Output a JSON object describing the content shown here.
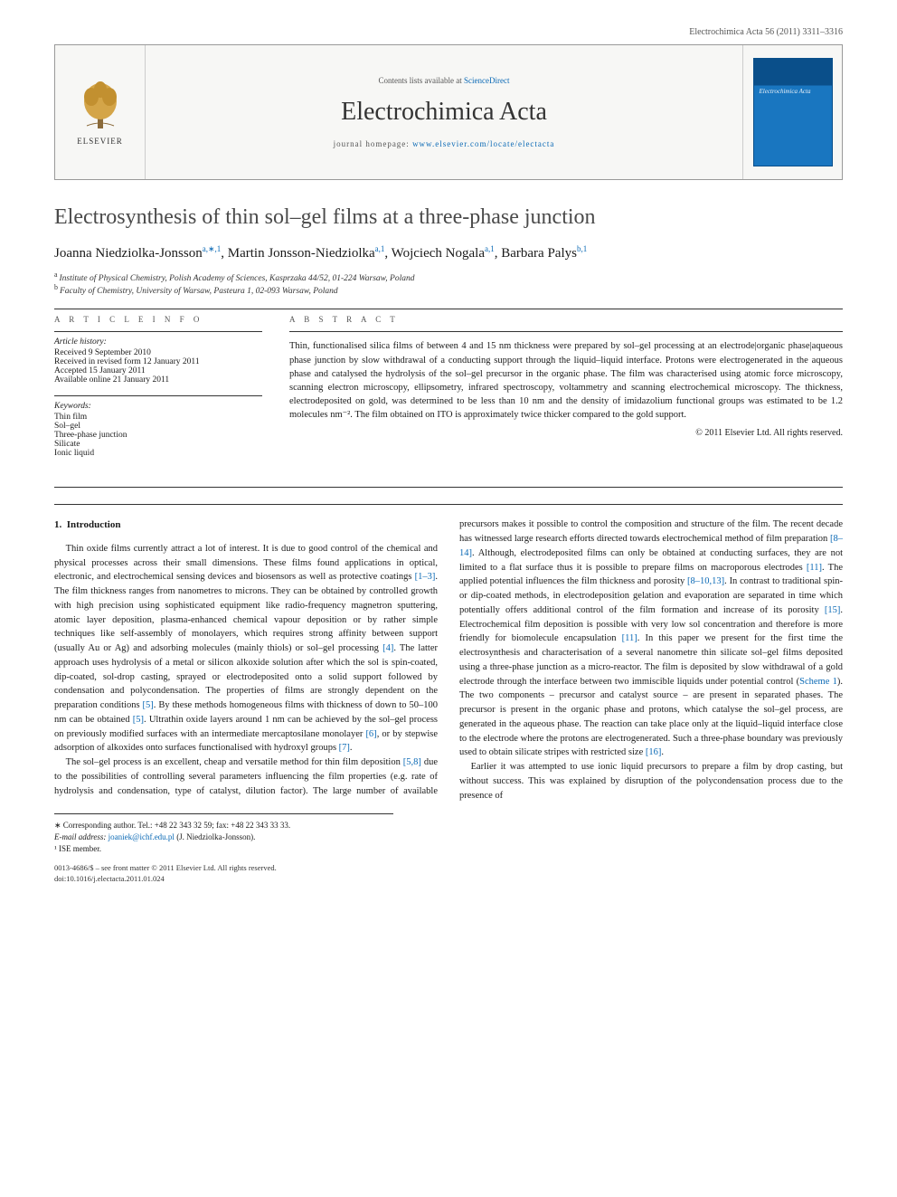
{
  "header": {
    "citation": "Electrochimica Acta 56 (2011) 3311–3316"
  },
  "masthead": {
    "publisher": "ELSEVIER",
    "contents_prefix": "Contents lists available at ",
    "contents_link": "ScienceDirect",
    "journal": "Electrochimica Acta",
    "homepage_prefix": "journal homepage: ",
    "homepage_url": "www.elsevier.com/locate/electacta",
    "cover_title": "Electrochimica Acta"
  },
  "article": {
    "title": "Electrosynthesis of thin sol–gel films at a three-phase junction",
    "authors_html": [
      {
        "name": "Joanna Niedziolka-Jonsson",
        "sup": "a,∗,1"
      },
      {
        "name": "Martin Jonsson-Niedziolka",
        "sup": "a,1"
      },
      {
        "name": "Wojciech Nogala",
        "sup": "a,1"
      },
      {
        "name": "Barbara Palys",
        "sup": "b,1"
      }
    ],
    "affiliations": [
      {
        "marker": "a",
        "text": "Institute of Physical Chemistry, Polish Academy of Sciences, Kasprzaka 44/52, 01-224 Warsaw, Poland"
      },
      {
        "marker": "b",
        "text": "Faculty of Chemistry, University of Warsaw, Pasteura 1, 02-093 Warsaw, Poland"
      }
    ]
  },
  "info": {
    "heading": "A R T I C L E   I N F O",
    "history_label": "Article history:",
    "history": [
      "Received 9 September 2010",
      "Received in revised form 12 January 2011",
      "Accepted 15 January 2011",
      "Available online 21 January 2011"
    ],
    "keywords_label": "Keywords:",
    "keywords": [
      "Thin film",
      "Sol–gel",
      "Three-phase junction",
      "Silicate",
      "Ionic liquid"
    ]
  },
  "abstract": {
    "heading": "A B S T R A C T",
    "text": "Thin, functionalised silica films of between 4 and 15 nm thickness were prepared by sol–gel processing at an electrode|organic phase|aqueous phase junction by slow withdrawal of a conducting support through the liquid–liquid interface. Protons were electrogenerated in the aqueous phase and catalysed the hydrolysis of the sol–gel precursor in the organic phase. The film was characterised using atomic force microscopy, scanning electron microscopy, ellipsometry, infrared spectroscopy, voltammetry and scanning electrochemical microscopy. The thickness, electrodeposited on gold, was determined to be less than 10 nm and the density of imidazolium functional groups was estimated to be 1.2 molecules nm⁻². The film obtained on ITO is approximately twice thicker compared to the gold support.",
    "copyright": "© 2011 Elsevier Ltd. All rights reserved."
  },
  "body": {
    "section_number": "1.",
    "section_title": "Introduction",
    "p1": "Thin oxide films currently attract a lot of interest. It is due to good control of the chemical and physical processes across their small dimensions. These films found applications in optical, electronic, and electrochemical sensing devices and biosensors as well as protective coatings [1–3]. The film thickness ranges from nanometres to microns. They can be obtained by controlled growth with high precision using sophisticated equipment like radio-frequency magnetron sputtering, atomic layer deposition, plasma-enhanced chemical vapour deposition or by rather simple techniques like self-assembly of monolayers, which requires strong affinity between support (usually Au or Ag) and adsorbing molecules (mainly thiols) or sol–gel processing [4]. The latter approach uses hydrolysis of a metal or silicon alkoxide solution after which the sol is spin-coated, dip-coated, sol-drop casting, sprayed or electrodeposited onto a solid support followed by condensation and polycondensation. The properties of films are strongly dependent on the preparation conditions [5]. By these methods homogeneous films with thickness of down to 50–100 nm can be obtained [5]. Ultrathin oxide layers around 1 nm can be achieved by the sol–gel process on previously modified surfaces with an intermediate mercaptosilane monolayer [6], or by stepwise adsorption of alkoxides onto surfaces functionalised with hydroxyl groups [7].",
    "p2": "The sol–gel process is an excellent, cheap and versatile method for thin film deposition [5,8] due to the possibilities of controlling several parameters influencing the film properties (e.g. rate of hydrolysis and condensation, type of catalyst, dilution factor). The large number of available precursors makes it possible to control the composition and structure of the film. The recent decade has witnessed large research efforts directed towards electrochemical method of film preparation [8–14]. Although, electrodeposited films can only be obtained at conducting surfaces, they are not limited to a flat surface thus it is possible to prepare films on macroporous electrodes [11]. The applied potential influences the film thickness and porosity [8–10,13]. In contrast to traditional spin- or dip-coated methods, in electrodeposition gelation and evaporation are separated in time which potentially offers additional control of the film formation and increase of its porosity [15]. Electrochemical film deposition is possible with very low sol concentration and therefore is more friendly for biomolecule encapsulation [11]. In this paper we present for the first time the electrosynthesis and characterisation of a several nanometre thin silicate sol–gel films deposited using a three-phase junction as a micro-reactor. The film is deposited by slow withdrawal of a gold electrode through the interface between two immiscible liquids under potential control (Scheme 1). The two components – precursor and catalyst source – are present in separated phases. The precursor is present in the organic phase and protons, which catalyse the sol–gel process, are generated in the aqueous phase. The reaction can take place only at the liquid–liquid interface close to the electrode where the protons are electrogenerated. Such a three-phase boundary was previously used to obtain silicate stripes with restricted size [16].",
    "p3": "Earlier it was attempted to use ionic liquid precursors to prepare a film by drop casting, but without success. This was explained by disruption of the polycondensation process due to the presence of"
  },
  "footnotes": {
    "corr_label": "∗ Corresponding author. Tel.: +48 22 343 32 59; fax: +48 22 343 33 33.",
    "email_label": "E-mail address:",
    "email": "joaniek@ichf.edu.pl",
    "email_person": "(J. Niedziolka-Jonsson).",
    "ise": "¹ ISE member."
  },
  "footmatter": {
    "line1": "0013-4686/$ – see front matter © 2011 Elsevier Ltd. All rights reserved.",
    "line2": "doi:10.1016/j.electacta.2011.01.024"
  },
  "colors": {
    "link": "#0a69b5",
    "text": "#1a1a1a",
    "rule": "#333333",
    "background": "#ffffff"
  }
}
